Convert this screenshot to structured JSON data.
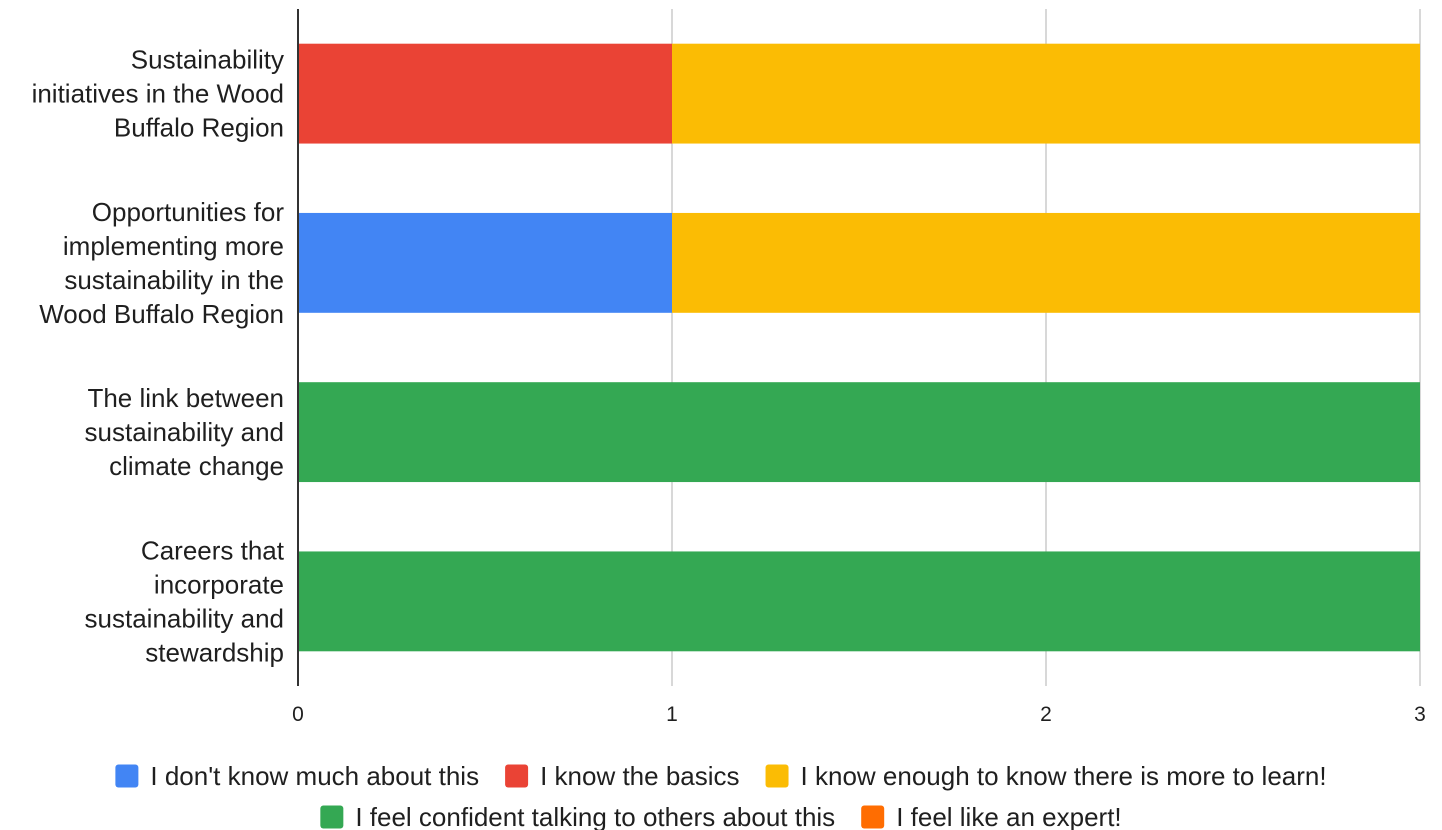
{
  "chart_data": {
    "type": "bar",
    "orientation": "horizontal",
    "stacked": true,
    "categories": [
      [
        "Sustainability",
        "initiatives in the Wood",
        "Buffalo Region"
      ],
      [
        "Opportunities for",
        "implementing more",
        "sustainability in the",
        "Wood Buffalo Region"
      ],
      [
        "The link between",
        "sustainability and",
        "climate change"
      ],
      [
        "Careers that",
        "incorporate",
        "sustainability and",
        "stewardship"
      ]
    ],
    "series": [
      {
        "name": "I don't know much about this",
        "color": "#4285f4",
        "values": [
          0,
          1,
          0,
          0
        ]
      },
      {
        "name": "I know the basics",
        "color": "#ea4335",
        "values": [
          1,
          0,
          0,
          0
        ]
      },
      {
        "name": "I know enough to know there is more to learn!",
        "color": "#fbbc04",
        "values": [
          2,
          2,
          0,
          0
        ]
      },
      {
        "name": "I feel confident talking to others about this",
        "color": "#34a853",
        "values": [
          0,
          0,
          3,
          3
        ]
      },
      {
        "name": "I feel like an expert!",
        "color": "#ff6d01",
        "values": [
          0,
          0,
          0,
          0
        ]
      }
    ],
    "x_ticks": [
      "0",
      "1",
      "2",
      "3"
    ],
    "xlim": [
      0,
      3
    ],
    "grid": true,
    "legend_position": "bottom",
    "title": "",
    "xlabel": "",
    "ylabel": ""
  }
}
